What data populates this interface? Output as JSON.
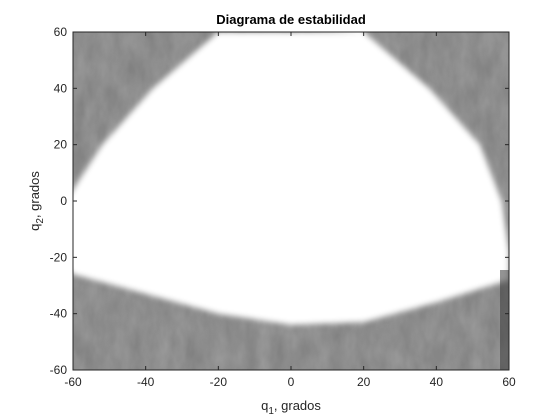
{
  "chart_data": {
    "type": "heatmap",
    "title": "Diagrama de estabilidad",
    "xlabel": {
      "base": "q",
      "subscript": "1",
      "suffix": ", grados"
    },
    "ylabel": {
      "base": "q",
      "subscript": "2",
      "suffix": ", grados"
    },
    "xlim": [
      -60,
      60
    ],
    "ylim": [
      -60,
      60
    ],
    "xticks": [
      -60,
      -40,
      -20,
      0,
      20,
      40,
      60
    ],
    "yticks": [
      -60,
      -40,
      -20,
      0,
      20,
      40,
      60
    ],
    "grid": false,
    "colormap": "gray",
    "colors": {
      "stable_region": "#ffffff",
      "unstable_region": "#9a9a9a",
      "axes": "#262626"
    },
    "stable_region_boundary": {
      "upper_left_edge": [
        [
          -20,
          60
        ],
        [
          -38,
          40
        ],
        [
          -52,
          20
        ],
        [
          -62,
          0
        ],
        [
          -66,
          -18
        ]
      ],
      "upper_right_edge": [
        [
          20,
          60
        ],
        [
          38,
          40
        ],
        [
          52,
          20
        ],
        [
          58,
          0
        ],
        [
          60,
          -18
        ]
      ],
      "lower_edge": [
        [
          -60,
          -26
        ],
        [
          -40,
          -33
        ],
        [
          -20,
          -40
        ],
        [
          0,
          -44
        ],
        [
          20,
          -43
        ],
        [
          40,
          -36
        ],
        [
          60,
          -28
        ]
      ]
    }
  }
}
